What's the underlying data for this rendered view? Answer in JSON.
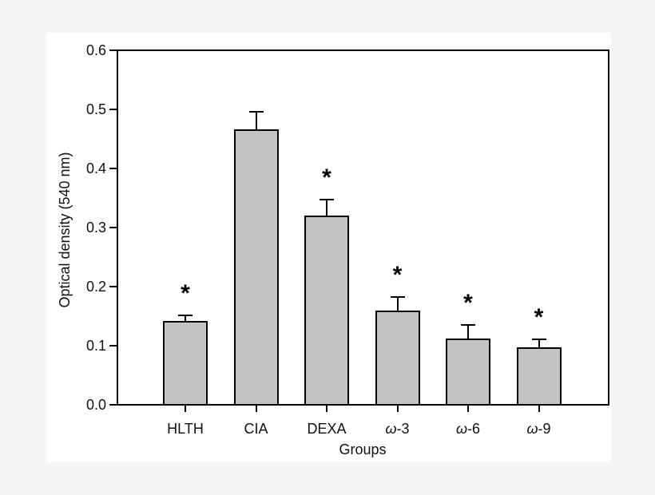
{
  "figure": {
    "background": "#ffffff",
    "page_background": "#f5f5f5"
  },
  "chart_data": {
    "type": "bar",
    "title": "",
    "xlabel": "Groups",
    "ylabel": "Optical density (540 nm)",
    "categories": [
      "HLTH",
      "CIA",
      "DEXA",
      "ω-3",
      "ω-6",
      "ω-9"
    ],
    "values": [
      0.141,
      0.467,
      0.321,
      0.159,
      0.112,
      0.097
    ],
    "errors": [
      0.01,
      0.03,
      0.026,
      0.023,
      0.022,
      0.013
    ],
    "significance": [
      true,
      false,
      true,
      true,
      true,
      true
    ],
    "significance_marker": "*",
    "ylim": [
      0,
      0.6
    ],
    "y_tick_labels": [
      "0.0",
      "0.1",
      "0.2",
      "0.3",
      "0.4",
      "0.5",
      "0.6"
    ],
    "grid": false,
    "legend": "none",
    "bar_fill": "#c3c3c3",
    "bar_border": "#000000",
    "axis_color": "#000000"
  }
}
